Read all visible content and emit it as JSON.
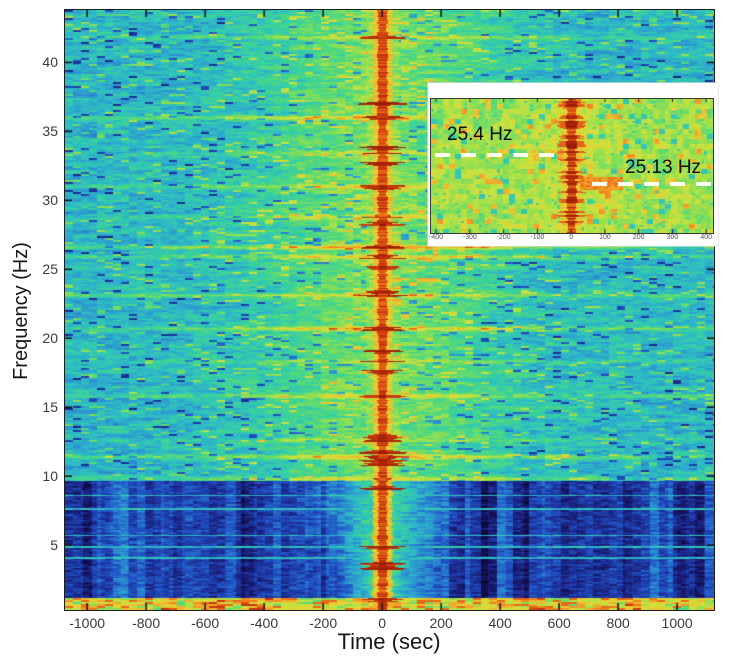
{
  "chart_data": {
    "type": "heatmap",
    "subtype": "spectrogram",
    "title": "",
    "xlabel": "Time (sec)",
    "ylabel": "Frequency (Hz)",
    "xlim": [
      -1075,
      1125
    ],
    "ylim": [
      0.3,
      43.8
    ],
    "xticks": [
      -1000,
      -800,
      -600,
      -400,
      -200,
      0,
      200,
      400,
      600,
      800,
      1000
    ],
    "yticks": [
      5,
      10,
      15,
      20,
      25,
      30,
      35,
      40
    ],
    "grid": false,
    "colormap": "jet",
    "colormap_stops": [
      [
        0.0,
        "#0a0620"
      ],
      [
        0.08,
        "#130d4e"
      ],
      [
        0.16,
        "#1c2a8f"
      ],
      [
        0.24,
        "#2155c8"
      ],
      [
        0.32,
        "#2b8fd0"
      ],
      [
        0.4,
        "#2eb8c8"
      ],
      [
        0.46,
        "#35cfa6"
      ],
      [
        0.52,
        "#52d97a"
      ],
      [
        0.58,
        "#8fdf52"
      ],
      [
        0.64,
        "#c8e23f"
      ],
      [
        0.7,
        "#e6d234"
      ],
      [
        0.76,
        "#f2a62b"
      ],
      [
        0.82,
        "#ee7519"
      ],
      [
        0.88,
        "#d94a12"
      ],
      [
        0.94,
        "#b52a0c"
      ],
      [
        1.0,
        "#801305"
      ]
    ],
    "features": {
      "transient_time_sec": 0,
      "transient_description": "broadband red vertical stripe at t = 0 spanning all frequencies",
      "harmonic_lines_hz": [
        41.8,
        36.0,
        33.4,
        31.0,
        28.8,
        26.6,
        25.9,
        23.1,
        20.7,
        18.3,
        15.8,
        12.6,
        11.4,
        9.8
      ],
      "low_noise_band": {
        "below_hz": 9.65,
        "description": "dark low-power band with lighter vertical columns, notched near t = 0"
      },
      "band_thin_lines_hz": [
        8.6,
        7.6,
        5.7,
        4.9,
        4.1
      ],
      "bottom_bright_band_below_hz": 1.15
    },
    "inset": {
      "xlim": [
        -415,
        420
      ],
      "ylim": [
        24.65,
        25.95
      ],
      "xticks": [
        -400,
        -300,
        -200,
        -100,
        0,
        100,
        200,
        300,
        400
      ],
      "annotations": [
        {
          "label": "25.4 Hz",
          "freq_hz": 25.4,
          "side": "left"
        },
        {
          "label": "25.13 Hz",
          "freq_hz": 25.13,
          "side": "right"
        }
      ],
      "description": "zoom near 25 Hz showing mode frequency drop across the t = 0 transient"
    }
  }
}
